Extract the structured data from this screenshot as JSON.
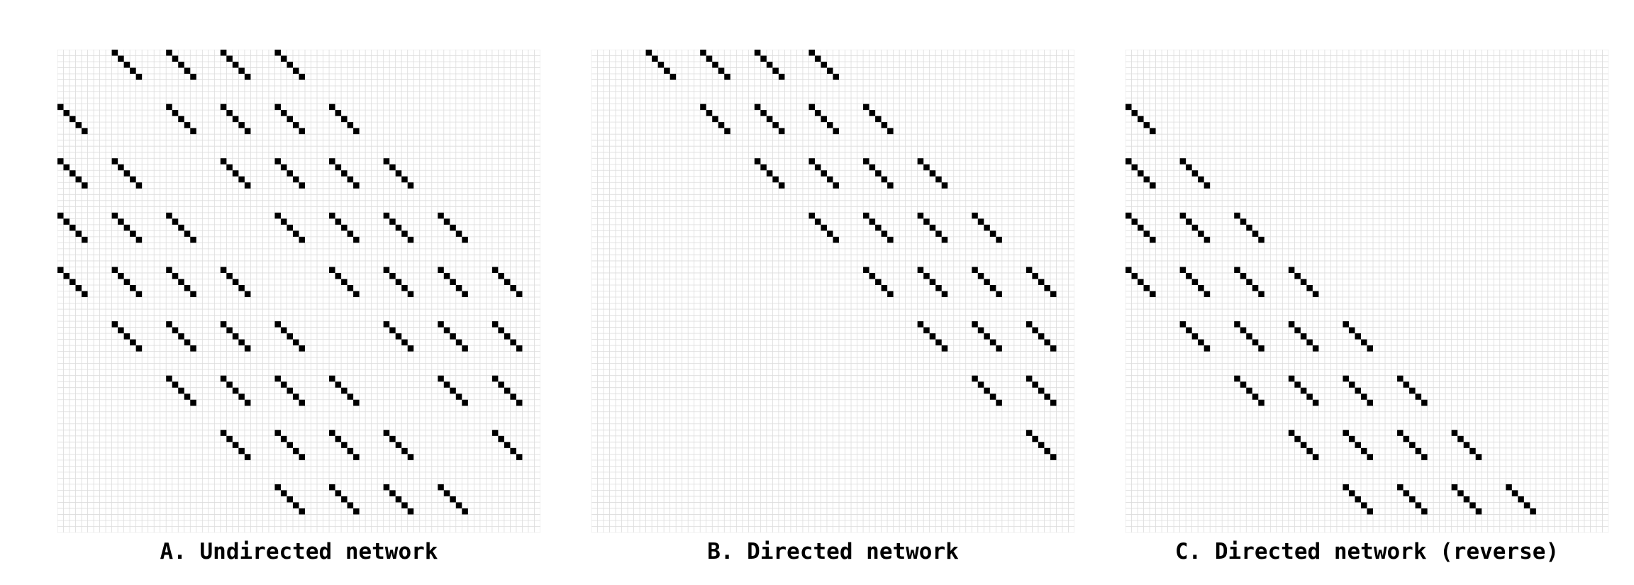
{
  "figure": {
    "grid_size": 80,
    "cell_color": "#000000",
    "grid_line_color": "#dcdcdc",
    "background": "#ffffff",
    "panels": [
      {
        "caption": "A. Undirected network",
        "block_rows": [
          0,
          1,
          2,
          3,
          4,
          5,
          6,
          7,
          8
        ],
        "filled_blocks": [
          [
            0,
            1
          ],
          [
            0,
            2
          ],
          [
            0,
            3
          ],
          [
            0,
            4
          ],
          [
            1,
            0
          ],
          [
            1,
            2
          ],
          [
            1,
            3
          ],
          [
            1,
            4
          ],
          [
            1,
            5
          ],
          [
            2,
            0
          ],
          [
            2,
            1
          ],
          [
            2,
            3
          ],
          [
            2,
            4
          ],
          [
            2,
            5
          ],
          [
            2,
            6
          ],
          [
            3,
            0
          ],
          [
            3,
            1
          ],
          [
            3,
            2
          ],
          [
            3,
            4
          ],
          [
            3,
            5
          ],
          [
            3,
            6
          ],
          [
            3,
            7
          ],
          [
            4,
            0
          ],
          [
            4,
            1
          ],
          [
            4,
            2
          ],
          [
            4,
            3
          ],
          [
            4,
            5
          ],
          [
            4,
            6
          ],
          [
            4,
            7
          ],
          [
            4,
            8
          ],
          [
            5,
            1
          ],
          [
            5,
            2
          ],
          [
            5,
            3
          ],
          [
            5,
            4
          ],
          [
            5,
            6
          ],
          [
            5,
            7
          ],
          [
            5,
            8
          ],
          [
            6,
            2
          ],
          [
            6,
            3
          ],
          [
            6,
            4
          ],
          [
            6,
            5
          ],
          [
            6,
            7
          ],
          [
            6,
            8
          ],
          [
            7,
            3
          ],
          [
            7,
            4
          ],
          [
            7,
            5
          ],
          [
            7,
            6
          ],
          [
            7,
            8
          ],
          [
            8,
            4
          ],
          [
            8,
            5
          ],
          [
            8,
            6
          ],
          [
            8,
            7
          ]
        ]
      },
      {
        "caption": "B. Directed network",
        "filled_blocks": [
          [
            0,
            1
          ],
          [
            0,
            2
          ],
          [
            0,
            3
          ],
          [
            0,
            4
          ],
          [
            1,
            2
          ],
          [
            1,
            3
          ],
          [
            1,
            4
          ],
          [
            1,
            5
          ],
          [
            2,
            3
          ],
          [
            2,
            4
          ],
          [
            2,
            5
          ],
          [
            2,
            6
          ],
          [
            3,
            4
          ],
          [
            3,
            5
          ],
          [
            3,
            6
          ],
          [
            3,
            7
          ],
          [
            4,
            5
          ],
          [
            4,
            6
          ],
          [
            4,
            7
          ],
          [
            4,
            8
          ],
          [
            5,
            6
          ],
          [
            5,
            7
          ],
          [
            5,
            8
          ],
          [
            6,
            7
          ],
          [
            6,
            8
          ],
          [
            7,
            8
          ]
        ]
      },
      {
        "caption": "C. Directed network (reverse)",
        "filled_blocks": [
          [
            1,
            0
          ],
          [
            2,
            0
          ],
          [
            2,
            1
          ],
          [
            3,
            0
          ],
          [
            3,
            1
          ],
          [
            3,
            2
          ],
          [
            4,
            0
          ],
          [
            4,
            1
          ],
          [
            4,
            2
          ],
          [
            4,
            3
          ],
          [
            5,
            1
          ],
          [
            5,
            2
          ],
          [
            5,
            3
          ],
          [
            5,
            4
          ],
          [
            6,
            2
          ],
          [
            6,
            3
          ],
          [
            6,
            4
          ],
          [
            6,
            5
          ],
          [
            7,
            3
          ],
          [
            7,
            4
          ],
          [
            7,
            5
          ],
          [
            7,
            6
          ],
          [
            8,
            4
          ],
          [
            8,
            5
          ],
          [
            8,
            6
          ],
          [
            8,
            7
          ]
        ]
      }
    ]
  }
}
